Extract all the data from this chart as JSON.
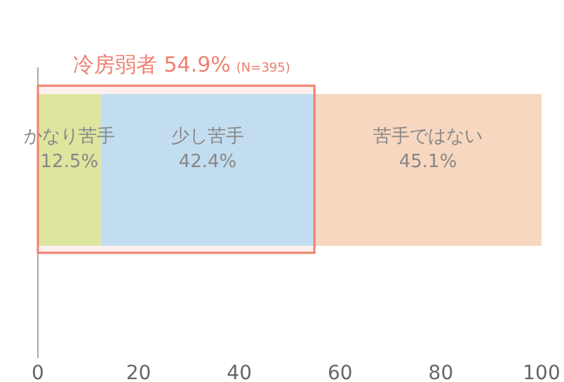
{
  "chart_data": {
    "type": "bar",
    "orientation": "horizontal",
    "stacked": true,
    "categories": [
      null
    ],
    "series": [
      {
        "name": "かなり苦手",
        "color": "#dde59f",
        "values": [
          12.5
        ],
        "value_labels": [
          "12.5%"
        ]
      },
      {
        "name": "少し苦手",
        "color": "#c3ddf0",
        "values": [
          42.4
        ],
        "value_labels": [
          "42.4%"
        ]
      },
      {
        "name": "苦手ではない",
        "color": "#f7d7c0",
        "values": [
          45.1
        ],
        "value_labels": [
          "45.1%"
        ]
      }
    ],
    "xlim": [
      0,
      100
    ],
    "xticks": [
      0,
      20,
      40,
      60,
      80,
      100
    ],
    "grid": false,
    "legend": false,
    "bands": [
      {
        "axis": "x",
        "from": 0,
        "to": 54.9,
        "label": "冷房弱者 54.9%",
        "color": "#f08070"
      }
    ],
    "annotations": [
      "(N=395)"
    ]
  }
}
